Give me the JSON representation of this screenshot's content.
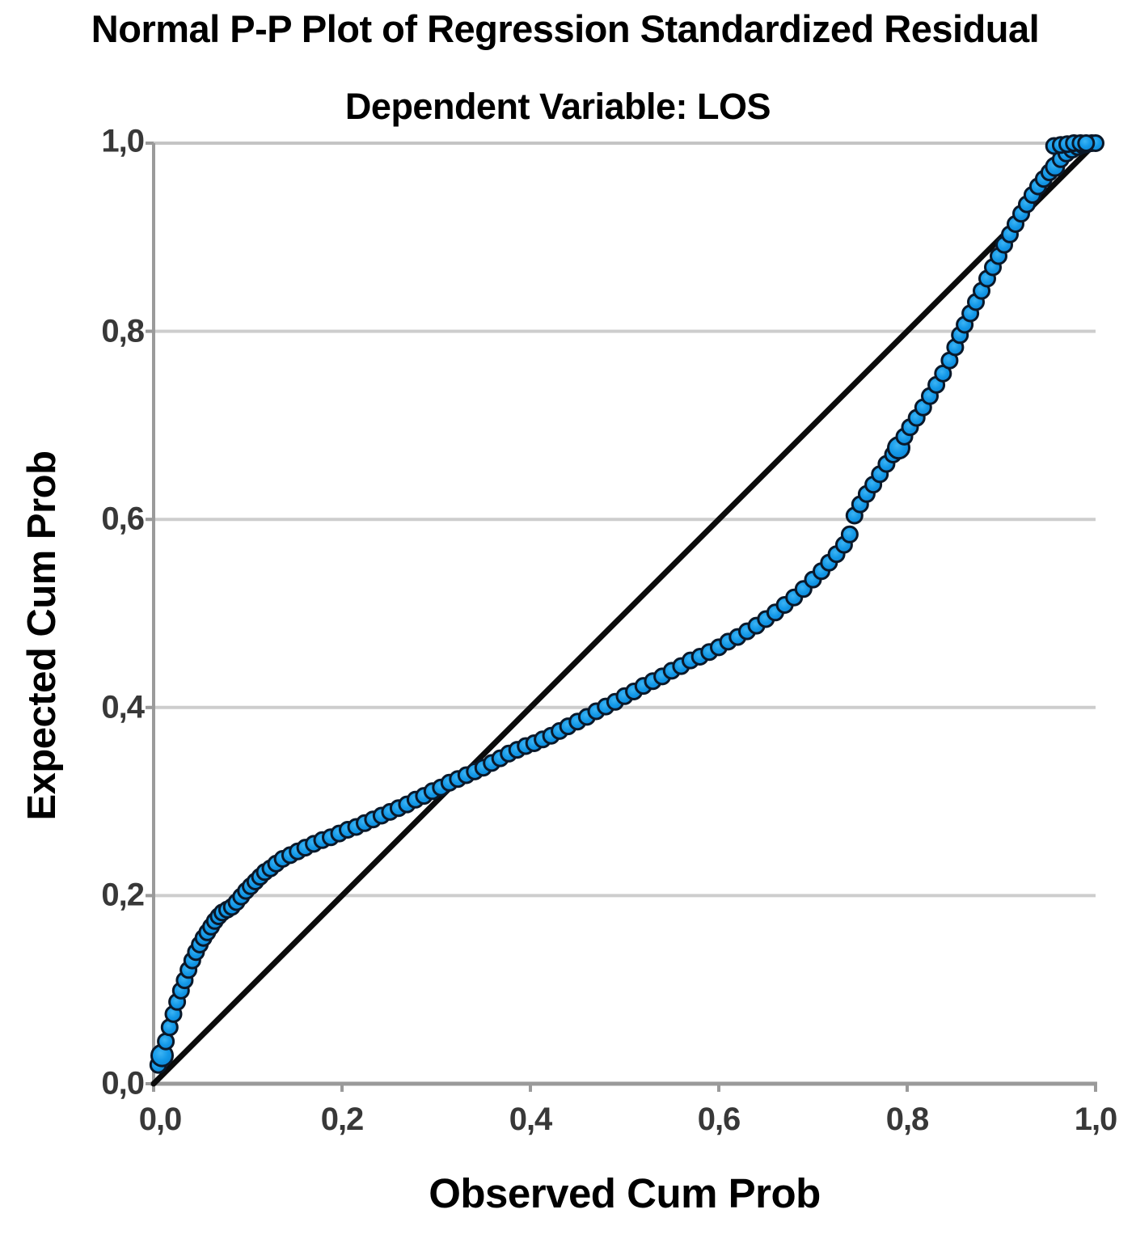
{
  "chart_data": {
    "type": "scatter",
    "title": "Normal P-P Plot of Regression Standardized Residual",
    "subtitle": "Dependent Variable: LOS",
    "xlabel": "Observed Cum Prob",
    "ylabel": "Expected Cum Prob",
    "xlim": [
      0,
      1
    ],
    "ylim": [
      0,
      1
    ],
    "grid": "horizontal",
    "legend": "none",
    "tick_values": [
      0,
      0.2,
      0.4,
      0.6,
      0.8,
      1.0
    ],
    "x_tick_labels": [
      "0,0",
      "0,2",
      "0,4",
      "0,6",
      "0,8",
      "1,0"
    ],
    "y_tick_labels": [
      "0,0",
      "0,2",
      "0,4",
      "0,6",
      "0,8",
      "1,0"
    ],
    "reference_line": {
      "name": "diagonal",
      "from": [
        0,
        0
      ],
      "to": [
        1,
        1
      ]
    },
    "series": [
      {
        "name": "standardized-residual-pp-points",
        "marker": "circle",
        "points": [
          [
            0.005,
            0.02
          ],
          [
            0.009,
            0.03,
            13
          ],
          [
            0.013,
            0.045
          ],
          [
            0.017,
            0.06
          ],
          [
            0.021,
            0.074
          ],
          [
            0.025,
            0.087
          ],
          [
            0.029,
            0.099
          ],
          [
            0.033,
            0.11
          ],
          [
            0.037,
            0.121
          ],
          [
            0.041,
            0.131
          ],
          [
            0.045,
            0.14
          ],
          [
            0.049,
            0.148
          ],
          [
            0.053,
            0.155
          ],
          [
            0.057,
            0.161
          ],
          [
            0.061,
            0.167
          ],
          [
            0.065,
            0.173
          ],
          [
            0.069,
            0.178
          ],
          [
            0.073,
            0.182
          ],
          [
            0.078,
            0.185
          ],
          [
            0.083,
            0.188
          ],
          [
            0.088,
            0.193
          ],
          [
            0.093,
            0.199
          ],
          [
            0.098,
            0.205
          ],
          [
            0.103,
            0.21
          ],
          [
            0.108,
            0.215
          ],
          [
            0.113,
            0.22
          ],
          [
            0.118,
            0.225
          ],
          [
            0.124,
            0.229
          ],
          [
            0.13,
            0.234
          ],
          [
            0.137,
            0.239
          ],
          [
            0.145,
            0.243
          ],
          [
            0.153,
            0.247
          ],
          [
            0.161,
            0.251
          ],
          [
            0.17,
            0.255
          ],
          [
            0.179,
            0.259
          ],
          [
            0.188,
            0.262
          ],
          [
            0.197,
            0.266
          ],
          [
            0.206,
            0.27
          ],
          [
            0.215,
            0.273
          ],
          [
            0.224,
            0.277
          ],
          [
            0.233,
            0.281
          ],
          [
            0.242,
            0.285
          ],
          [
            0.251,
            0.289
          ],
          [
            0.26,
            0.293
          ],
          [
            0.269,
            0.297
          ],
          [
            0.278,
            0.302
          ],
          [
            0.287,
            0.306
          ],
          [
            0.296,
            0.311
          ],
          [
            0.305,
            0.315
          ],
          [
            0.314,
            0.32
          ],
          [
            0.323,
            0.324
          ],
          [
            0.332,
            0.328
          ],
          [
            0.341,
            0.332
          ],
          [
            0.35,
            0.336
          ],
          [
            0.359,
            0.341
          ],
          [
            0.368,
            0.346
          ],
          [
            0.377,
            0.351
          ],
          [
            0.386,
            0.355
          ],
          [
            0.395,
            0.359
          ],
          [
            0.404,
            0.362
          ],
          [
            0.413,
            0.366
          ],
          [
            0.422,
            0.37
          ],
          [
            0.431,
            0.375
          ],
          [
            0.44,
            0.38
          ],
          [
            0.45,
            0.385
          ],
          [
            0.46,
            0.39
          ],
          [
            0.47,
            0.396
          ],
          [
            0.48,
            0.401
          ],
          [
            0.49,
            0.406
          ],
          [
            0.5,
            0.412
          ],
          [
            0.51,
            0.417
          ],
          [
            0.52,
            0.423
          ],
          [
            0.53,
            0.428
          ],
          [
            0.54,
            0.433
          ],
          [
            0.55,
            0.439
          ],
          [
            0.56,
            0.444
          ],
          [
            0.57,
            0.45
          ],
          [
            0.58,
            0.454
          ],
          [
            0.59,
            0.459
          ],
          [
            0.6,
            0.464
          ],
          [
            0.61,
            0.47
          ],
          [
            0.62,
            0.475
          ],
          [
            0.63,
            0.481
          ],
          [
            0.64,
            0.487
          ],
          [
            0.65,
            0.494
          ],
          [
            0.66,
            0.501
          ],
          [
            0.67,
            0.509
          ],
          [
            0.68,
            0.517
          ],
          [
            0.69,
            0.526
          ],
          [
            0.7,
            0.536
          ],
          [
            0.709,
            0.545
          ],
          [
            0.717,
            0.554
          ],
          [
            0.725,
            0.563
          ],
          [
            0.733,
            0.573
          ],
          [
            0.739,
            0.584
          ],
          [
            0.744,
            0.604
          ],
          [
            0.75,
            0.616
          ],
          [
            0.757,
            0.627
          ],
          [
            0.764,
            0.637
          ],
          [
            0.771,
            0.648
          ],
          [
            0.778,
            0.659
          ],
          [
            0.785,
            0.669
          ],
          [
            0.791,
            0.676,
            13
          ],
          [
            0.797,
            0.688
          ],
          [
            0.803,
            0.698
          ],
          [
            0.81,
            0.708
          ],
          [
            0.817,
            0.719
          ],
          [
            0.824,
            0.731
          ],
          [
            0.831,
            0.743
          ],
          [
            0.838,
            0.755
          ],
          [
            0.845,
            0.769
          ],
          [
            0.851,
            0.783
          ],
          [
            0.856,
            0.796
          ],
          [
            0.861,
            0.807
          ],
          [
            0.867,
            0.819
          ],
          [
            0.873,
            0.831
          ],
          [
            0.879,
            0.843
          ],
          [
            0.885,
            0.856
          ],
          [
            0.891,
            0.868
          ],
          [
            0.897,
            0.88
          ],
          [
            0.903,
            0.892
          ],
          [
            0.909,
            0.903
          ],
          [
            0.915,
            0.914
          ],
          [
            0.921,
            0.925
          ],
          [
            0.927,
            0.935
          ],
          [
            0.933,
            0.945
          ],
          [
            0.939,
            0.954
          ],
          [
            0.945,
            0.962
          ],
          [
            0.951,
            0.969
          ],
          [
            0.957,
            0.975,
            11
          ],
          [
            0.963,
            0.983
          ],
          [
            0.969,
            0.989
          ],
          [
            0.975,
            0.993
          ],
          [
            0.981,
            0.996
          ],
          [
            0.986,
            0.998
          ],
          [
            0.991,
            0.999
          ],
          [
            0.996,
            1.0
          ],
          [
            1.0,
            1.0
          ],
          [
            0.956,
            0.997
          ],
          [
            0.963,
            0.998
          ],
          [
            0.97,
            0.999
          ],
          [
            0.977,
            1.0
          ],
          [
            0.984,
            1.0
          ],
          [
            0.99,
            1.0
          ]
        ]
      }
    ]
  },
  "colors": {
    "background": "#ffffff",
    "title_text": "#000000",
    "tick_text": "#383838",
    "axis_line": "#9a9a9a",
    "gridline": "#cdcdcd",
    "top_frame": "#c4c4c4",
    "diagonal_line": "#0b0b0b",
    "dot_fill": "#1499e8",
    "dot_fill_light": "#3cb4f4",
    "dot_fill_dark": "#0e86d6",
    "dot_stroke": "#0a1829"
  }
}
